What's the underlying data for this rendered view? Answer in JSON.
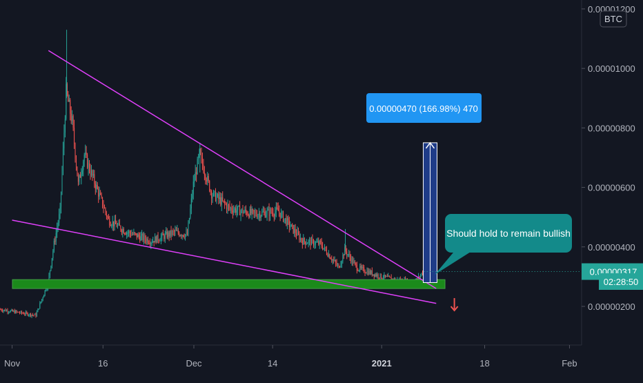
{
  "chart_data": {
    "type": "candlestick",
    "currency_badge": "BTC",
    "y_axis": {
      "ticks": [
        "0.00001200",
        "0.00001000",
        "0.00000800",
        "0.00000600",
        "0.00000400",
        "0.00000200"
      ],
      "tick_values": [
        1.2e-05,
        1e-05,
        8e-06,
        6e-06,
        4e-06,
        2e-06
      ],
      "ylim": [
        7e-07,
        1.23e-05
      ]
    },
    "x_axis": {
      "ticks": [
        "Nov",
        "16",
        "Dec",
        "14",
        "2021",
        "18",
        "Feb"
      ],
      "tick_dates": [
        "2020-11-01",
        "2020-11-16",
        "2020-12-01",
        "2020-12-14",
        "2021-01-01",
        "2021-01-18",
        "2021-02-01"
      ],
      "bold_ticks": [
        "2021"
      ],
      "xlim": [
        "2020-10-30",
        "2021-02-03"
      ]
    },
    "price_series_daily": [
      {
        "date": "2020-10-30",
        "close": 1.9e-06
      },
      {
        "date": "2020-11-05",
        "close": 1.7e-06
      },
      {
        "date": "2020-11-07",
        "close": 2.8e-06
      },
      {
        "date": "2020-11-08",
        "close": 4.1e-06
      },
      {
        "date": "2020-11-09",
        "close": 5.2e-06
      },
      {
        "date": "2020-11-10",
        "close": 9.2e-06
      },
      {
        "date": "2020-11-11",
        "close": 8.2e-06
      },
      {
        "date": "2020-11-12",
        "close": 6.1e-06
      },
      {
        "date": "2020-11-13",
        "close": 7.1e-06
      },
      {
        "date": "2020-11-15",
        "close": 6e-06
      },
      {
        "date": "2020-11-17",
        "close": 4.9e-06
      },
      {
        "date": "2020-11-20",
        "close": 4.5e-06
      },
      {
        "date": "2020-11-24",
        "close": 4.2e-06
      },
      {
        "date": "2020-11-28",
        "close": 4.5e-06
      },
      {
        "date": "2020-11-30",
        "close": 4.4e-06
      },
      {
        "date": "2020-12-01",
        "close": 6.1e-06
      },
      {
        "date": "2020-12-02",
        "close": 7.1e-06
      },
      {
        "date": "2020-12-04",
        "close": 5.8e-06
      },
      {
        "date": "2020-12-07",
        "close": 5.3e-06
      },
      {
        "date": "2020-12-11",
        "close": 5.1e-06
      },
      {
        "date": "2020-12-15",
        "close": 5.2e-06
      },
      {
        "date": "2020-12-19",
        "close": 4.2e-06
      },
      {
        "date": "2020-12-22",
        "close": 4.1e-06
      },
      {
        "date": "2020-12-25",
        "close": 3.3e-06
      },
      {
        "date": "2020-12-26",
        "close": 3.9e-06
      },
      {
        "date": "2020-12-28",
        "close": 3.3e-06
      },
      {
        "date": "2021-01-01",
        "close": 3e-06
      },
      {
        "date": "2021-01-03",
        "close": 2.9e-06
      },
      {
        "date": "2021-01-06",
        "close": 2.8e-06
      },
      {
        "date": "2021-01-07",
        "close": 2.9e-06
      },
      {
        "date": "2021-01-08",
        "close": 3.2e-06
      }
    ],
    "current_price_label": "0.00000317",
    "current_price": 3.17e-06,
    "countdown_label": "02:28:50",
    "support_zone": {
      "from": 2.6e-06,
      "to": 2.9e-06
    },
    "trendlines": [
      {
        "name": "",
        "from": {
          "date": "2020-11-07",
          "value": 1.06e-05
        },
        "to": {
          "date": "2021-01-10",
          "value": 2.6e-06
        }
      },
      {
        "name": "",
        "from": {
          "date": "2020-11-01",
          "value": 4.9e-06
        },
        "to": {
          "date": "2021-01-10",
          "value": 2.1e-06
        }
      }
    ],
    "measure": {
      "label": "0.00000470 (166.98%) 470",
      "from_value": 2.8e-06,
      "to_value": 7.5e-06,
      "date": "2021-01-09"
    },
    "callout": {
      "text": "Should hold to remain bullish"
    },
    "grid": false,
    "colors": {
      "background": "#131722",
      "up": "#26a69a",
      "down": "#ef5350",
      "trendline": "#e040fb",
      "support_fill": "#1b8a1b",
      "support_border": "#43a047",
      "measure_fill": "#1f3c88",
      "measure_label_bg": "#2196f3",
      "callout_bg": "#138a8a",
      "price_tag_bg": "#26a69a",
      "arrow": "#ef5350",
      "axis_text": "#b2b5be"
    }
  }
}
